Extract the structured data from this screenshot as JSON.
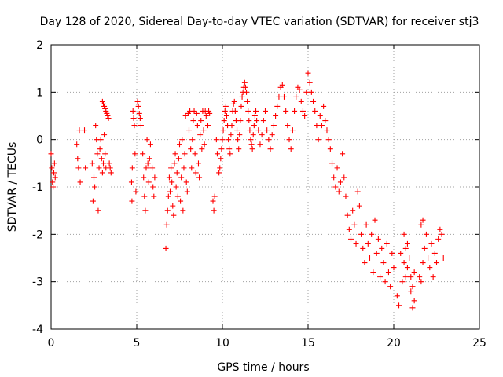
{
  "chart_data": {
    "type": "scatter",
    "title": "Day 128 of 2020, Sidereal Day-to-day VTEC variation (SDTVAR) for receiver stj3",
    "xlabel": "GPS time / hours",
    "ylabel": "SDTVAR / TECUs",
    "xlim": [
      0,
      25
    ],
    "ylim": [
      -4,
      2
    ],
    "xticks": [
      0,
      5,
      10,
      15,
      20,
      25
    ],
    "yticks": [
      -4,
      -3,
      -2,
      -1,
      0,
      1,
      2
    ],
    "xtick_labels": [
      "0",
      "5",
      "10",
      "15",
      "20",
      "25"
    ],
    "ytick_labels": [
      "-4",
      "-3",
      "-2",
      "-1",
      "0",
      "1",
      "2"
    ],
    "grid": true,
    "marker": "+",
    "color": "#ff0000",
    "series": [
      {
        "name": "SDTVAR",
        "x": [
          0.0,
          0.04,
          0.08,
          0.12,
          0.16,
          0.2,
          0.24,
          1.5,
          1.55,
          1.6,
          1.65,
          1.7,
          1.95,
          2.0,
          2.4,
          2.45,
          2.5,
          2.55,
          2.6,
          2.65,
          2.7,
          2.75,
          2.8,
          2.85,
          2.9,
          2.95,
          3.0,
          3.05,
          3.1,
          3.15,
          3.2,
          3.0,
          3.05,
          3.1,
          3.15,
          3.2,
          3.25,
          3.3,
          3.35,
          3.4,
          3.45,
          3.5,
          4.7,
          4.72,
          4.74,
          4.78,
          4.82,
          4.86,
          4.9,
          4.95,
          5.05,
          5.1,
          5.15,
          5.2,
          5.25,
          5.35,
          5.4,
          5.45,
          5.5,
          5.55,
          5.6,
          5.65,
          5.7,
          5.75,
          5.8,
          5.9,
          5.95,
          6.0,
          6.05,
          6.7,
          6.75,
          6.8,
          6.85,
          6.9,
          6.95,
          7.0,
          7.05,
          7.1,
          7.15,
          7.2,
          7.25,
          7.3,
          7.35,
          7.4,
          7.45,
          7.5,
          7.55,
          7.6,
          7.65,
          7.7,
          7.75,
          7.8,
          7.85,
          7.9,
          7.95,
          8.0,
          8.05,
          8.1,
          8.15,
          8.2,
          8.25,
          8.3,
          8.35,
          8.4,
          8.45,
          8.5,
          8.55,
          8.6,
          8.65,
          8.7,
          8.75,
          8.8,
          8.85,
          8.9,
          8.95,
          9.0,
          9.05,
          9.15,
          9.2,
          9.25,
          9.45,
          9.5,
          9.55,
          9.65,
          9.7,
          9.8,
          9.85,
          9.9,
          9.95,
          10.0,
          10.05,
          10.1,
          10.15,
          10.2,
          10.25,
          10.3,
          10.35,
          10.4,
          10.45,
          10.5,
          10.55,
          10.6,
          10.65,
          10.7,
          10.75,
          10.8,
          10.85,
          10.9,
          10.95,
          11.0,
          11.05,
          11.1,
          11.15,
          11.2,
          11.25,
          11.3,
          11.35,
          11.4,
          11.45,
          11.5,
          11.55,
          11.6,
          11.65,
          11.7,
          11.75,
          11.8,
          11.85,
          11.9,
          11.95,
          12.0,
          12.1,
          12.2,
          12.3,
          12.4,
          12.5,
          12.6,
          12.7,
          12.8,
          12.9,
          13.0,
          13.1,
          13.2,
          13.3,
          13.4,
          13.5,
          13.6,
          13.7,
          13.8,
          13.9,
          14.0,
          14.1,
          14.2,
          14.3,
          14.4,
          14.5,
          14.6,
          14.7,
          14.8,
          14.9,
          15.0,
          15.1,
          15.2,
          15.3,
          15.4,
          15.5,
          15.6,
          15.7,
          15.8,
          15.9,
          16.0,
          16.1,
          16.2,
          16.3,
          16.4,
          16.5,
          16.6,
          16.7,
          16.8,
          16.9,
          17.0,
          17.1,
          17.2,
          17.3,
          17.4,
          17.5,
          17.6,
          17.7,
          17.8,
          17.9,
          18.0,
          18.1,
          18.2,
          18.3,
          18.4,
          18.5,
          18.6,
          18.7,
          18.8,
          18.9,
          19.0,
          19.1,
          19.2,
          19.3,
          19.4,
          19.5,
          19.6,
          19.7,
          19.8,
          19.9,
          20.0,
          20.2,
          20.3,
          20.4,
          20.5,
          20.6,
          20.7,
          20.8,
          20.9,
          21.0,
          21.1,
          21.2,
          20.6,
          20.7,
          20.8,
          20.9,
          21.0,
          21.1,
          21.2,
          21.5,
          21.6,
          21.7,
          21.8,
          21.9,
          22.0,
          22.1,
          22.2,
          22.3,
          22.4,
          22.5,
          22.6,
          22.7,
          22.8,
          22.9,
          21.6,
          21.7
        ],
        "y": [
          -0.3,
          -0.6,
          -0.9,
          -1.0,
          -0.7,
          -0.5,
          -0.8,
          -0.1,
          -0.4,
          -0.6,
          0.2,
          -0.9,
          0.2,
          -0.6,
          -0.5,
          -1.3,
          -0.8,
          -1.0,
          0.3,
          0.0,
          -0.3,
          -1.5,
          -0.6,
          -0.2,
          0.0,
          -0.4,
          -0.7,
          -0.5,
          0.1,
          -0.3,
          -0.6,
          0.8,
          0.75,
          0.7,
          0.65,
          0.6,
          0.55,
          0.5,
          0.45,
          -0.5,
          -0.6,
          -0.7,
          -0.9,
          -1.3,
          -0.6,
          0.6,
          0.45,
          0.3,
          -0.3,
          -1.1,
          0.8,
          0.7,
          0.55,
          0.45,
          0.3,
          -0.3,
          -0.8,
          -1.2,
          -1.5,
          -0.6,
          0.0,
          -0.5,
          -0.9,
          -0.4,
          -0.1,
          -0.6,
          -1.0,
          -1.2,
          -0.8,
          -2.3,
          -1.8,
          -1.5,
          -1.2,
          -0.8,
          -1.1,
          -0.6,
          -0.9,
          -1.4,
          -1.6,
          -0.5,
          -0.3,
          -1.0,
          -0.7,
          -1.2,
          -0.4,
          -0.1,
          -1.3,
          -0.8,
          0.0,
          -1.5,
          -0.6,
          -0.3,
          0.5,
          -0.9,
          -1.1,
          0.55,
          0.2,
          0.6,
          -0.2,
          -0.6,
          0.0,
          0.4,
          0.6,
          -0.3,
          -0.7,
          0.55,
          0.3,
          -0.5,
          -0.8,
          0.1,
          0.4,
          -0.2,
          0.6,
          0.2,
          -0.1,
          0.6,
          0.5,
          0.3,
          0.6,
          0.55,
          -1.3,
          -1.5,
          -1.2,
          0.0,
          -0.3,
          -0.7,
          -0.6,
          -0.4,
          -0.2,
          0.0,
          0.2,
          0.4,
          0.6,
          0.7,
          0.5,
          0.3,
          0.0,
          -0.2,
          -0.3,
          0.1,
          0.3,
          0.6,
          0.75,
          0.8,
          0.6,
          0.4,
          0.2,
          0.0,
          -0.2,
          0.1,
          0.4,
          0.7,
          0.9,
          1.0,
          1.1,
          1.2,
          1.1,
          1.0,
          0.8,
          0.6,
          0.4,
          0.2,
          0.0,
          -0.1,
          -0.2,
          0.1,
          0.3,
          0.5,
          0.6,
          0.4,
          0.2,
          -0.1,
          0.1,
          0.4,
          0.6,
          0.2,
          0.0,
          -0.2,
          0.1,
          0.3,
          0.5,
          0.7,
          0.9,
          1.1,
          1.15,
          0.9,
          0.6,
          0.3,
          0.0,
          -0.2,
          0.2,
          0.6,
          0.9,
          1.1,
          1.05,
          0.8,
          0.6,
          0.5,
          1.0,
          1.4,
          1.2,
          1.0,
          0.8,
          0.6,
          0.3,
          0.0,
          0.5,
          0.3,
          0.7,
          0.4,
          0.2,
          0.0,
          -0.2,
          -0.5,
          -0.8,
          -1.0,
          -0.6,
          -1.1,
          -0.9,
          -0.3,
          -0.8,
          -1.2,
          -1.6,
          -1.9,
          -2.1,
          -1.5,
          -1.8,
          -2.2,
          -1.1,
          -1.4,
          -2.0,
          -2.3,
          -2.6,
          -1.8,
          -2.2,
          -2.5,
          -2.0,
          -2.8,
          -1.7,
          -2.4,
          -2.1,
          -2.9,
          -2.3,
          -2.6,
          -3.0,
          -2.2,
          -2.8,
          -3.1,
          -2.4,
          -2.7,
          -3.3,
          -3.5,
          -2.4,
          -3.0,
          -2.6,
          -2.9,
          -2.2,
          -2.5,
          -3.2,
          -3.55,
          -3.4,
          -2.0,
          -2.3,
          -2.7,
          -2.5,
          -2.9,
          -3.1,
          -2.8,
          -2.9,
          -3.0,
          -2.6,
          -2.3,
          -2.0,
          -2.5,
          -2.7,
          -2.2,
          -2.9,
          -2.4,
          -2.6,
          -2.1,
          -1.9,
          -2.0,
          -2.5,
          -1.8,
          -1.7
        ]
      }
    ]
  }
}
